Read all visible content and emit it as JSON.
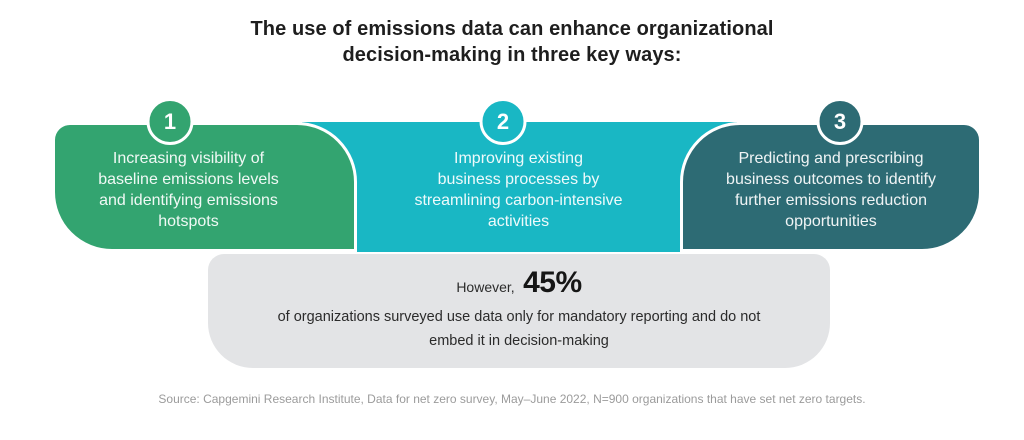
{
  "title": {
    "line1": "The use of emissions data can enhance organizational",
    "line2": "decision-making in three key ways:"
  },
  "steps": [
    {
      "number": "1",
      "color": "#33a470",
      "lines": [
        "Increasing visibility of",
        "baseline emissions levels",
        "and identifying emissions",
        "hotspots"
      ]
    },
    {
      "number": "2",
      "color": "#19b7c4",
      "lines": [
        "Improving existing",
        "business processes by",
        "streamlining carbon-intensive",
        "activities"
      ]
    },
    {
      "number": "3",
      "color": "#2d6b74",
      "lines": [
        "Predicting and prescribing",
        "business outcomes to identify",
        "further emissions reduction",
        "opportunities"
      ]
    }
  ],
  "stat": {
    "intro": "However,",
    "value": "45%",
    "line1": "of organizations surveyed use data only for mandatory reporting and do not",
    "line2": "embed it in decision-making",
    "background": "#e3e4e6"
  },
  "source": "Source: Capgemini Research Institute, Data for net zero survey, May–June 2022, N=900 organizations that have set net zero targets."
}
